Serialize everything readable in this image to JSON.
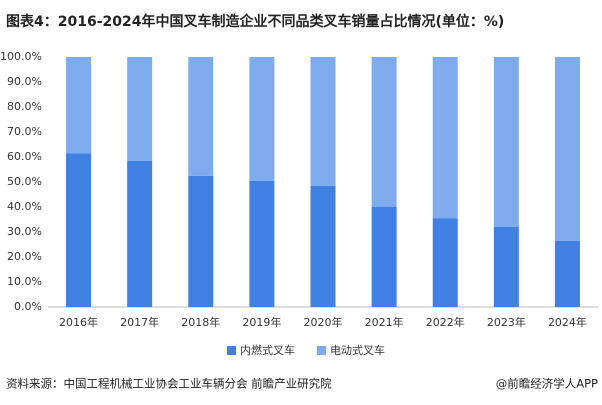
{
  "chart_data": {
    "type": "bar",
    "stacked": true,
    "title": "图表4：2016-2024年中国叉车制造企业不同品类叉车销量占比情况(单位：%)",
    "categories": [
      "2016年",
      "2017年",
      "2018年",
      "2019年",
      "2020年",
      "2021年",
      "2022年",
      "2023年",
      "2024年"
    ],
    "series": [
      {
        "name": "内燃式叉车",
        "color": "#3f80e2",
        "values": [
          61.5,
          58.5,
          52.5,
          50.5,
          48.5,
          40,
          35.5,
          32,
          26.5
        ]
      },
      {
        "name": "电动式叉车",
        "color": "#7eaaee",
        "values": [
          38.5,
          41.5,
          47.5,
          49.5,
          51.5,
          60,
          64.5,
          68,
          73.5
        ]
      }
    ],
    "ylim": [
      0,
      100
    ],
    "yticks": [
      {
        "value": 0,
        "label": "0.0%"
      },
      {
        "value": 10,
        "label": "10.0%"
      },
      {
        "value": 20,
        "label": "20.0%"
      },
      {
        "value": 30,
        "label": "30.0%"
      },
      {
        "value": 40,
        "label": "40.0%"
      },
      {
        "value": 50,
        "label": "50.0%"
      },
      {
        "value": 60,
        "label": "60.0%"
      },
      {
        "value": 70,
        "label": "70.0%"
      },
      {
        "value": 80,
        "label": "80.0%"
      },
      {
        "value": 90,
        "label": "90.0%"
      },
      {
        "value": 100,
        "label": "100.0%"
      }
    ],
    "grid": false,
    "legend": "bottom",
    "source": "资料来源：中国工程机械工业协会工业车辆分会 前瞻产业研究院",
    "credit": "@前瞻经济学人APP"
  }
}
